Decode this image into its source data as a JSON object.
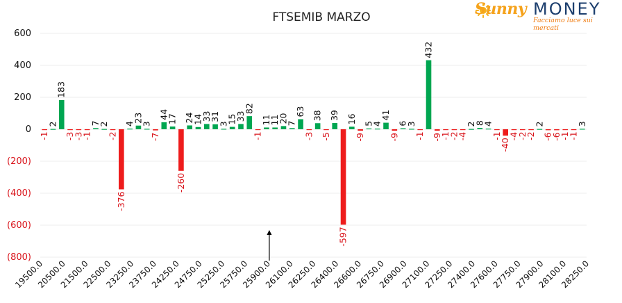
{
  "logo": {
    "brand_first": "Sunny",
    "brand_second": "MONEY",
    "tagline": "Facciamo luce sui mercati"
  },
  "colors": {
    "positive": "#00a651",
    "negative": "#ee1c1c",
    "axis_positive_label": "#111111",
    "axis_negative_label": "#d9141b",
    "grid": "#eeeeee"
  },
  "chart_data": {
    "type": "bar",
    "title": "FTSEMIB MARZO",
    "ylim": [
      -800,
      600
    ],
    "yticks": [
      "600",
      "400",
      "200",
      "0",
      "(200)",
      "(400)",
      "(600)",
      "(800)"
    ],
    "ytick_values": [
      600,
      400,
      200,
      0,
      -200,
      -400,
      -600,
      -800
    ],
    "xtick_labels": [
      "19500.0",
      "20500.0",
      "21500.0",
      "22500.0",
      "23250.0",
      "23750.0",
      "24250.0",
      "24750.0",
      "25250.0",
      "25750.0",
      "25900.0",
      "26100.0",
      "26250.0",
      "26400.0",
      "26600.0",
      "26750.0",
      "26900.0",
      "27100.0",
      "27250.0",
      "27400.0",
      "27600.0",
      "27750.0",
      "27900.0",
      "28100.0",
      "28250.0"
    ],
    "grid": true,
    "legend": "none",
    "marker_at": "25900.0",
    "values": [
      -1,
      2,
      183,
      -3,
      -3,
      -1,
      7,
      2,
      -2,
      -376,
      4,
      23,
      3,
      -7,
      44,
      17,
      -260,
      24,
      14,
      33,
      31,
      3,
      15,
      33,
      82,
      -1,
      11,
      11,
      20,
      7,
      63,
      -3,
      38,
      -5,
      39,
      -597,
      16,
      -9,
      5,
      4,
      41,
      -9,
      6,
      3,
      -1,
      432,
      -9,
      -1,
      -2,
      -4,
      2,
      8,
      4,
      -1,
      -40,
      -4,
      -2,
      -2,
      2,
      -6,
      -6,
      -1,
      -1,
      3
    ],
    "value_labels": [
      "-1",
      "2",
      "183",
      "-3",
      "-3",
      "-1",
      "7",
      "2",
      "-2",
      "-376",
      "4",
      "23",
      "3",
      "-7",
      "44",
      "17",
      "-260",
      "24",
      "14",
      "33",
      "31",
      "3",
      "15",
      "33",
      "82",
      "-1",
      "11",
      "11",
      "20",
      "7",
      "63",
      "-3",
      "38",
      "-5",
      "39",
      "-597",
      "16",
      "-9",
      "5",
      "4",
      "41",
      "-9",
      "6",
      "3",
      "-1",
      "432",
      "-9",
      "-1",
      "-2",
      "-4",
      "2",
      "8",
      "4",
      "-1",
      "-40",
      "-4",
      "-2",
      "-2",
      "2",
      "-6",
      "-6",
      "-1",
      "-1",
      "3"
    ]
  }
}
